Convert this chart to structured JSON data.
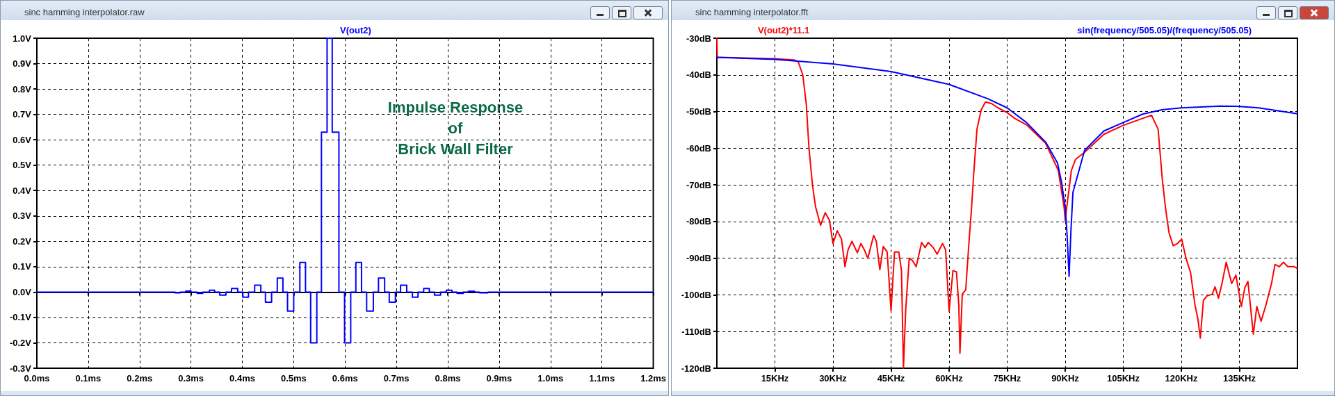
{
  "chart_data": [
    {
      "type": "step",
      "title": "sinc hamming interpolator.raw",
      "grid": true,
      "legend": "top",
      "xlim": [
        0,
        1.2
      ],
      "ylim": [
        -0.3,
        1.0
      ],
      "xticks": [
        {
          "value": 0,
          "label": "0.0ms"
        },
        {
          "value": 0.1,
          "label": "0.1ms"
        },
        {
          "value": 0.2,
          "label": "0.2ms"
        },
        {
          "value": 0.3,
          "label": "0.3ms"
        },
        {
          "value": 0.4,
          "label": "0.4ms"
        },
        {
          "value": 0.5,
          "label": "0.5ms"
        },
        {
          "value": 0.6,
          "label": "0.6ms"
        },
        {
          "value": 0.7,
          "label": "0.7ms"
        },
        {
          "value": 0.8,
          "label": "0.8ms"
        },
        {
          "value": 0.9,
          "label": "0.9ms"
        },
        {
          "value": 1.0,
          "label": "1.0ms"
        },
        {
          "value": 1.1,
          "label": "1.1ms"
        },
        {
          "value": 1.2,
          "label": "1.2ms"
        }
      ],
      "yticks": [
        {
          "value": -0.3,
          "label": "-0.3V"
        },
        {
          "value": -0.2,
          "label": "-0.2V"
        },
        {
          "value": -0.1,
          "label": "-0.1V"
        },
        {
          "value": 0,
          "label": "0.0V"
        },
        {
          "value": 0.1,
          "label": "0.1V"
        },
        {
          "value": 0.2,
          "label": "0.2V"
        },
        {
          "value": 0.3,
          "label": "0.3V"
        },
        {
          "value": 0.4,
          "label": "0.4V"
        },
        {
          "value": 0.5,
          "label": "0.5V"
        },
        {
          "value": 0.6,
          "label": "0.6V"
        },
        {
          "value": 0.7,
          "label": "0.7V"
        },
        {
          "value": 0.8,
          "label": "0.8V"
        },
        {
          "value": 0.9,
          "label": "0.9V"
        },
        {
          "value": 1.0,
          "label": "1.0V"
        }
      ],
      "annotations": [
        "Impulse Response\nof\nBrick Wall Filter"
      ],
      "series": [
        {
          "name": "V(out2)",
          "color": "#0000ff",
          "x": [
            0,
            0.269,
            0.279,
            0.29,
            0.3,
            0.312,
            0.323,
            0.336,
            0.346,
            0.356,
            0.368,
            0.379,
            0.391,
            0.401,
            0.412,
            0.424,
            0.436,
            0.445,
            0.457,
            0.468,
            0.479,
            0.488,
            0.5,
            0.512,
            0.523,
            0.533,
            0.545,
            0.554,
            0.565,
            0.575,
            0.588,
            0.599,
            0.611,
            0.621,
            0.632,
            0.642,
            0.655,
            0.665,
            0.677,
            0.686,
            0.698,
            0.708,
            0.72,
            0.731,
            0.742,
            0.753,
            0.764,
            0.774,
            0.786,
            0.797,
            0.808,
            0.818,
            0.83,
            0.84,
            0.852,
            0.862,
            0.878,
            1.2
          ],
          "values": [
            0,
            -0.003,
            0,
            0.004,
            0,
            -0.005,
            0,
            0.007,
            0,
            -0.012,
            0,
            0.014,
            0,
            -0.02,
            0,
            0.027,
            0,
            -0.04,
            0,
            0.055,
            0,
            -0.075,
            0,
            0.117,
            0,
            -0.2,
            0,
            0.63,
            1.0,
            0.63,
            0,
            -0.2,
            0,
            0.117,
            0,
            -0.075,
            0,
            0.055,
            0,
            -0.04,
            0,
            0.027,
            0,
            -0.02,
            0,
            0.014,
            0,
            -0.012,
            0,
            0.007,
            0,
            -0.005,
            0,
            0.003,
            0,
            -0.003,
            0,
            0
          ]
        }
      ]
    },
    {
      "type": "line",
      "title": "sinc hamming interpolator.fft",
      "grid": true,
      "legend": "top",
      "xlim": [
        0,
        150
      ],
      "ylim": [
        -120,
        -30
      ],
      "xticks": [
        {
          "value": 15,
          "label": "15KHz"
        },
        {
          "value": 30,
          "label": "30KHz"
        },
        {
          "value": 45,
          "label": "45KHz"
        },
        {
          "value": 60,
          "label": "60KHz"
        },
        {
          "value": 75,
          "label": "75KHz"
        },
        {
          "value": 90,
          "label": "90KHz"
        },
        {
          "value": 105,
          "label": "105KHz"
        },
        {
          "value": 120,
          "label": "120KHz"
        },
        {
          "value": 135,
          "label": "135KHz"
        }
      ],
      "yticks": [
        {
          "value": -120,
          "label": "-120dB"
        },
        {
          "value": -110,
          "label": "-110dB"
        },
        {
          "value": -100,
          "label": "-100dB"
        },
        {
          "value": -90,
          "label": "-90dB"
        },
        {
          "value": -80,
          "label": "-80dB"
        },
        {
          "value": -70,
          "label": "-70dB"
        },
        {
          "value": -60,
          "label": "-60dB"
        },
        {
          "value": -50,
          "label": "-50dB"
        },
        {
          "value": -40,
          "label": "-40dB"
        },
        {
          "value": -30,
          "label": "-30dB"
        }
      ],
      "series": [
        {
          "name": "V(out2)*11.1",
          "color": "#ff0000",
          "x": [
            0,
            0.1,
            14.9,
            19.9,
            21.0,
            22.2,
            23.1,
            23.8,
            24.7,
            25.5,
            26.8,
            28.0,
            29.1,
            30.0,
            31.1,
            32.2,
            33.1,
            33.9,
            34.9,
            36.3,
            37.2,
            38.1,
            39.0,
            40.5,
            41.2,
            42.1,
            43.0,
            44.0,
            45.0,
            45.9,
            47.0,
            47.7,
            48.2,
            48.8,
            49.7,
            50.5,
            51.5,
            52.9,
            53.8,
            54.6,
            55.9,
            56.9,
            58.3,
            59.1,
            60.0,
            61.0,
            61.9,
            62.5,
            62.8,
            63.4,
            64.3,
            65.0,
            65.8,
            66.4,
            67.2,
            68.3,
            69.4,
            70.9,
            72.5,
            75.0,
            77.0,
            80.0,
            84.9,
            88.2,
            89.7,
            90.0,
            90.4,
            91.6,
            92.7,
            94.9,
            100.0,
            104.9,
            109.9,
            112.3,
            114.0,
            115.1,
            115.9,
            116.8,
            117.9,
            119.0,
            120.1,
            121.2,
            122.4,
            123.5,
            124.3,
            124.9,
            125.7,
            126.6,
            128.0,
            128.7,
            129.6,
            130.5,
            131.6,
            133.0,
            134.1,
            135.5,
            136.4,
            137.2,
            138.6,
            139.5,
            140.6,
            141.9,
            143.3,
            144.2,
            145.3,
            146.4,
            147.5,
            149.2,
            150
          ],
          "values": [
            -30,
            -35.2,
            -35.6,
            -35.9,
            -36.4,
            -40,
            -48,
            -60,
            -70,
            -76,
            -81,
            -77.6,
            -79.7,
            -86,
            -82.5,
            -84.8,
            -92.3,
            -87.7,
            -85.4,
            -88.5,
            -86,
            -87.7,
            -90,
            -83.8,
            -85.4,
            -93.1,
            -86.8,
            -88.3,
            -104.4,
            -88.3,
            -88.3,
            -93.4,
            -120,
            -103.8,
            -90,
            -90.6,
            -92.3,
            -85.7,
            -87.1,
            -85.7,
            -87.1,
            -88.9,
            -86,
            -87.7,
            -104.4,
            -93.4,
            -93.7,
            -102.6,
            -115.9,
            -99.8,
            -98.6,
            -87.7,
            -76.2,
            -66.4,
            -54.8,
            -49.5,
            -47.4,
            -47.8,
            -48.9,
            -50.3,
            -51.9,
            -53.6,
            -58.6,
            -66,
            -76,
            -79.7,
            -76,
            -66,
            -63,
            -61.2,
            -56.2,
            -53.8,
            -51.9,
            -51,
            -54.8,
            -68.7,
            -76.2,
            -83,
            -86.6,
            -86,
            -84.8,
            -90,
            -94,
            -102.6,
            -106.7,
            -111.8,
            -101.5,
            -100.3,
            -99.8,
            -97.8,
            -100.9,
            -96.9,
            -91.1,
            -96.9,
            -94.6,
            -103.2,
            -98.1,
            -96.3,
            -110.7,
            -103.2,
            -107.2,
            -102.6,
            -96.9,
            -91.7,
            -92.3,
            -91.1,
            -92.3,
            -92.3,
            -92.9
          ]
        },
        {
          "name": "sin(frequency/505.05)/(frequency/505.05)",
          "color": "#0000ff",
          "x": [
            0,
            15,
            30,
            45,
            60,
            70,
            75,
            80,
            85,
            88,
            89,
            90,
            90.5,
            91,
            91.5,
            92,
            95,
            100,
            105,
            110,
            115,
            120,
            130,
            135,
            140,
            150
          ],
          "values": [
            -35.2,
            -35.8,
            -37,
            -39.1,
            -42.6,
            -46.5,
            -49,
            -53,
            -58.4,
            -64,
            -69,
            -76,
            -84,
            -95,
            -82,
            -72,
            -60.6,
            -55.3,
            -53,
            -50.7,
            -49.5,
            -49,
            -48.5,
            -48.6,
            -49,
            -50.6
          ]
        }
      ]
    }
  ]
}
